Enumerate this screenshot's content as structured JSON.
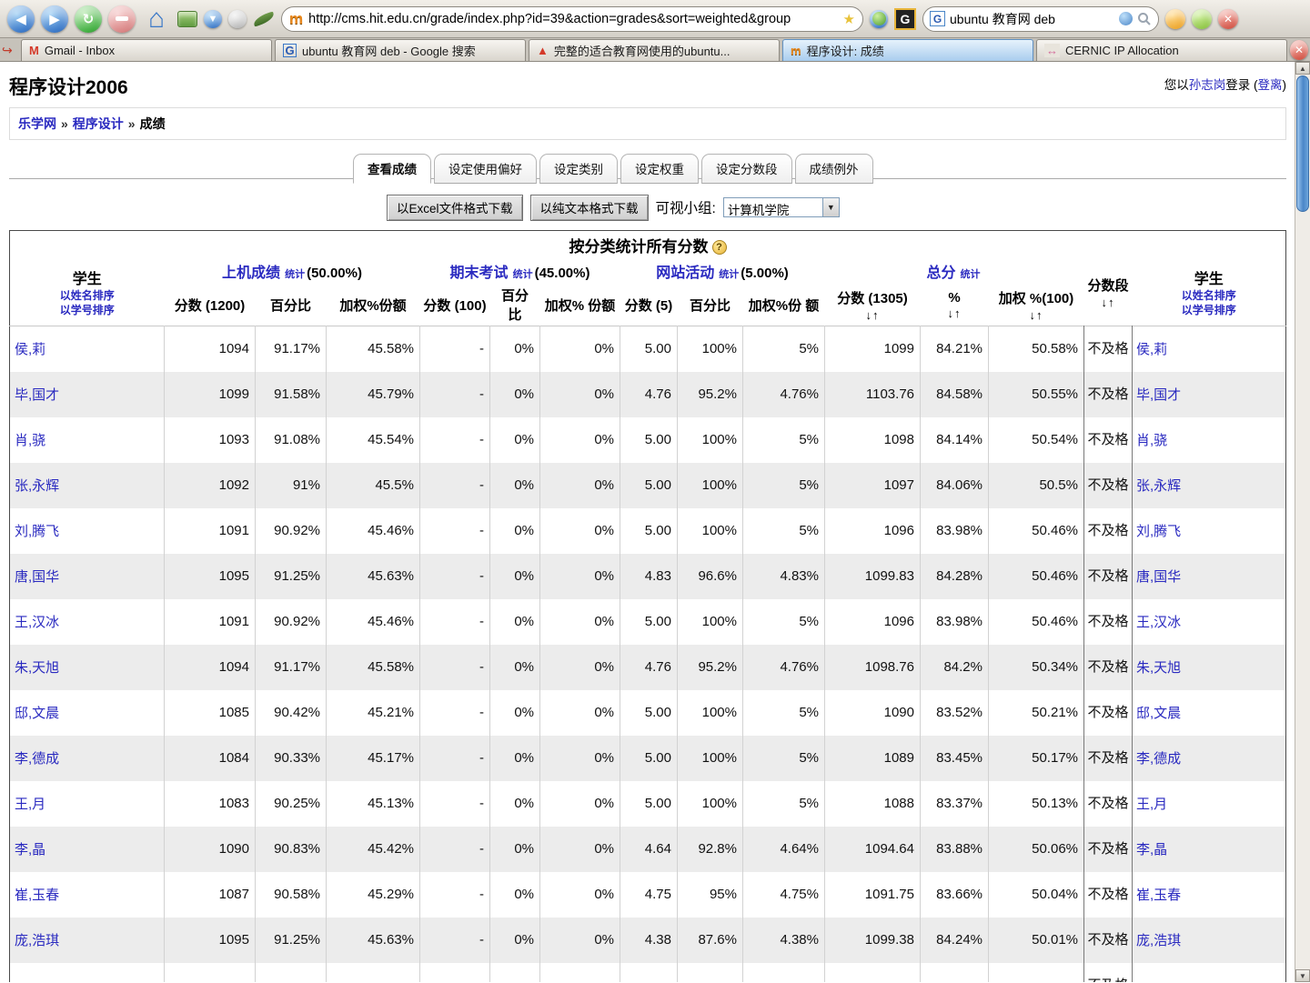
{
  "glyphs": {
    "back": "◀",
    "forward": "▶",
    "reload": "↻",
    "home": "⌂",
    "down_small": "▼",
    "up_small": "▲",
    "close": "✕",
    "star": "★",
    "g_letter": "G",
    "m_letter": "m",
    "gmail_m": "M",
    "cernic": "↔",
    "book": "▲",
    "hist": "↪",
    "help": "?",
    "sep": "»",
    "sort_arrows": "↓↑",
    "search_q": ""
  },
  "browser": {
    "url": "http://cms.hit.edu.cn/grade/index.php?id=39&action=grades&sort=weighted&group",
    "search_value": "ubuntu 教育网 deb",
    "tabs": [
      {
        "label": "Gmail - Inbox",
        "icon": "gmail",
        "active": false
      },
      {
        "label": "ubuntu 教育网 deb - Google 搜索",
        "icon": "google",
        "active": false
      },
      {
        "label": "完整的适合教育网使用的ubuntu...",
        "icon": "book",
        "active": false
      },
      {
        "label": "程序设计: 成绩",
        "icon": "moodle",
        "active": true
      },
      {
        "label": "CERNIC IP Allocation",
        "icon": "cernic",
        "active": false
      }
    ]
  },
  "page": {
    "title": "程序设计2006",
    "login_prefix": "您以",
    "login_user": "孙志岗",
    "login_middle": "登录 ",
    "logout_open": "(",
    "logout_label": "登离",
    "logout_close": ")",
    "breadcrumb": [
      {
        "label": "乐学网",
        "link": true
      },
      {
        "label": "程序设计",
        "link": true
      },
      {
        "label": "成绩",
        "link": false
      }
    ],
    "tabs": [
      {
        "label": "查看成绩",
        "active": true
      },
      {
        "label": "设定使用偏好",
        "active": false
      },
      {
        "label": "设定类别",
        "active": false
      },
      {
        "label": "设定权重",
        "active": false
      },
      {
        "label": "设定分数段",
        "active": false
      },
      {
        "label": "成绩例外",
        "active": false
      }
    ],
    "excel_button": "以Excel文件格式下载",
    "text_button": "以纯文本格式下载",
    "group_label": "可视小组:",
    "group_value": "计算机学院"
  },
  "table": {
    "title": "按分类统计所有分数",
    "student_header": "学生",
    "sort_by_name": "以姓名排序",
    "sort_by_id": "以学号排序",
    "stat_label": "统计",
    "groups": [
      {
        "name": "上机成绩",
        "weight": "(50.00%)",
        "cols": [
          {
            "label": "分数 (1200)",
            "arrows": false
          },
          {
            "label": "百分比",
            "arrows": false
          },
          {
            "label": "加权%份额",
            "arrows": false
          }
        ]
      },
      {
        "name": "期末考试",
        "weight": "(45.00%)",
        "cols": [
          {
            "label": "分数 (100)",
            "arrows": false
          },
          {
            "label": "百分 比",
            "arrows": false
          },
          {
            "label": "加权% 份额",
            "arrows": false
          }
        ]
      },
      {
        "name": "网站活动",
        "weight": "(5.00%)",
        "cols": [
          {
            "label": "分数 (5)",
            "arrows": false
          },
          {
            "label": "百分比",
            "arrows": false
          },
          {
            "label": "加权%份 额",
            "arrows": false
          }
        ]
      },
      {
        "name": "总分",
        "weight": "",
        "cols": [
          {
            "label": "分数 (1305)",
            "arrows": true
          },
          {
            "label": "%",
            "arrows": true
          },
          {
            "label": "加权 %(100)",
            "arrows": true
          }
        ]
      }
    ],
    "seg_header": "分数段",
    "rows": [
      {
        "name": "侯,莉",
        "cells": [
          "1094",
          "91.17%",
          "45.58%",
          "-",
          "0%",
          "0%",
          "5.00",
          "100%",
          "5%",
          "1099",
          "84.21%",
          "50.58%"
        ],
        "seg": "不及格"
      },
      {
        "name": "毕,国才",
        "cells": [
          "1099",
          "91.58%",
          "45.79%",
          "-",
          "0%",
          "0%",
          "4.76",
          "95.2%",
          "4.76%",
          "1103.76",
          "84.58%",
          "50.55%"
        ],
        "seg": "不及格"
      },
      {
        "name": "肖,骁",
        "cells": [
          "1093",
          "91.08%",
          "45.54%",
          "-",
          "0%",
          "0%",
          "5.00",
          "100%",
          "5%",
          "1098",
          "84.14%",
          "50.54%"
        ],
        "seg": "不及格"
      },
      {
        "name": "张,永辉",
        "cells": [
          "1092",
          "91%",
          "45.5%",
          "-",
          "0%",
          "0%",
          "5.00",
          "100%",
          "5%",
          "1097",
          "84.06%",
          "50.5%"
        ],
        "seg": "不及格"
      },
      {
        "name": "刘,腾飞",
        "cells": [
          "1091",
          "90.92%",
          "45.46%",
          "-",
          "0%",
          "0%",
          "5.00",
          "100%",
          "5%",
          "1096",
          "83.98%",
          "50.46%"
        ],
        "seg": "不及格"
      },
      {
        "name": "唐,国华",
        "cells": [
          "1095",
          "91.25%",
          "45.63%",
          "-",
          "0%",
          "0%",
          "4.83",
          "96.6%",
          "4.83%",
          "1099.83",
          "84.28%",
          "50.46%"
        ],
        "seg": "不及格"
      },
      {
        "name": "王,汉冰",
        "cells": [
          "1091",
          "90.92%",
          "45.46%",
          "-",
          "0%",
          "0%",
          "5.00",
          "100%",
          "5%",
          "1096",
          "83.98%",
          "50.46%"
        ],
        "seg": "不及格"
      },
      {
        "name": "朱,天旭",
        "cells": [
          "1094",
          "91.17%",
          "45.58%",
          "-",
          "0%",
          "0%",
          "4.76",
          "95.2%",
          "4.76%",
          "1098.76",
          "84.2%",
          "50.34%"
        ],
        "seg": "不及格"
      },
      {
        "name": "邸,文晨",
        "cells": [
          "1085",
          "90.42%",
          "45.21%",
          "-",
          "0%",
          "0%",
          "5.00",
          "100%",
          "5%",
          "1090",
          "83.52%",
          "50.21%"
        ],
        "seg": "不及格"
      },
      {
        "name": "李,德成",
        "cells": [
          "1084",
          "90.33%",
          "45.17%",
          "-",
          "0%",
          "0%",
          "5.00",
          "100%",
          "5%",
          "1089",
          "83.45%",
          "50.17%"
        ],
        "seg": "不及格"
      },
      {
        "name": "王,月",
        "cells": [
          "1083",
          "90.25%",
          "45.13%",
          "-",
          "0%",
          "0%",
          "5.00",
          "100%",
          "5%",
          "1088",
          "83.37%",
          "50.13%"
        ],
        "seg": "不及格"
      },
      {
        "name": "李,晶",
        "cells": [
          "1090",
          "90.83%",
          "45.42%",
          "-",
          "0%",
          "0%",
          "4.64",
          "92.8%",
          "4.64%",
          "1094.64",
          "83.88%",
          "50.06%"
        ],
        "seg": "不及格"
      },
      {
        "name": "崔,玉春",
        "cells": [
          "1087",
          "90.58%",
          "45.29%",
          "-",
          "0%",
          "0%",
          "4.75",
          "95%",
          "4.75%",
          "1091.75",
          "83.66%",
          "50.04%"
        ],
        "seg": "不及格"
      },
      {
        "name": "庞,浩琪",
        "cells": [
          "1095",
          "91.25%",
          "45.63%",
          "-",
          "0%",
          "0%",
          "4.38",
          "87.6%",
          "4.38%",
          "1099.38",
          "84.24%",
          "50.01%"
        ],
        "seg": "不及格"
      }
    ],
    "partial_row": {
      "name": "",
      "cells": [
        "",
        "",
        "",
        "",
        "",
        "",
        "",
        "",
        "",
        "",
        "",
        ""
      ],
      "seg": "不及格"
    }
  }
}
